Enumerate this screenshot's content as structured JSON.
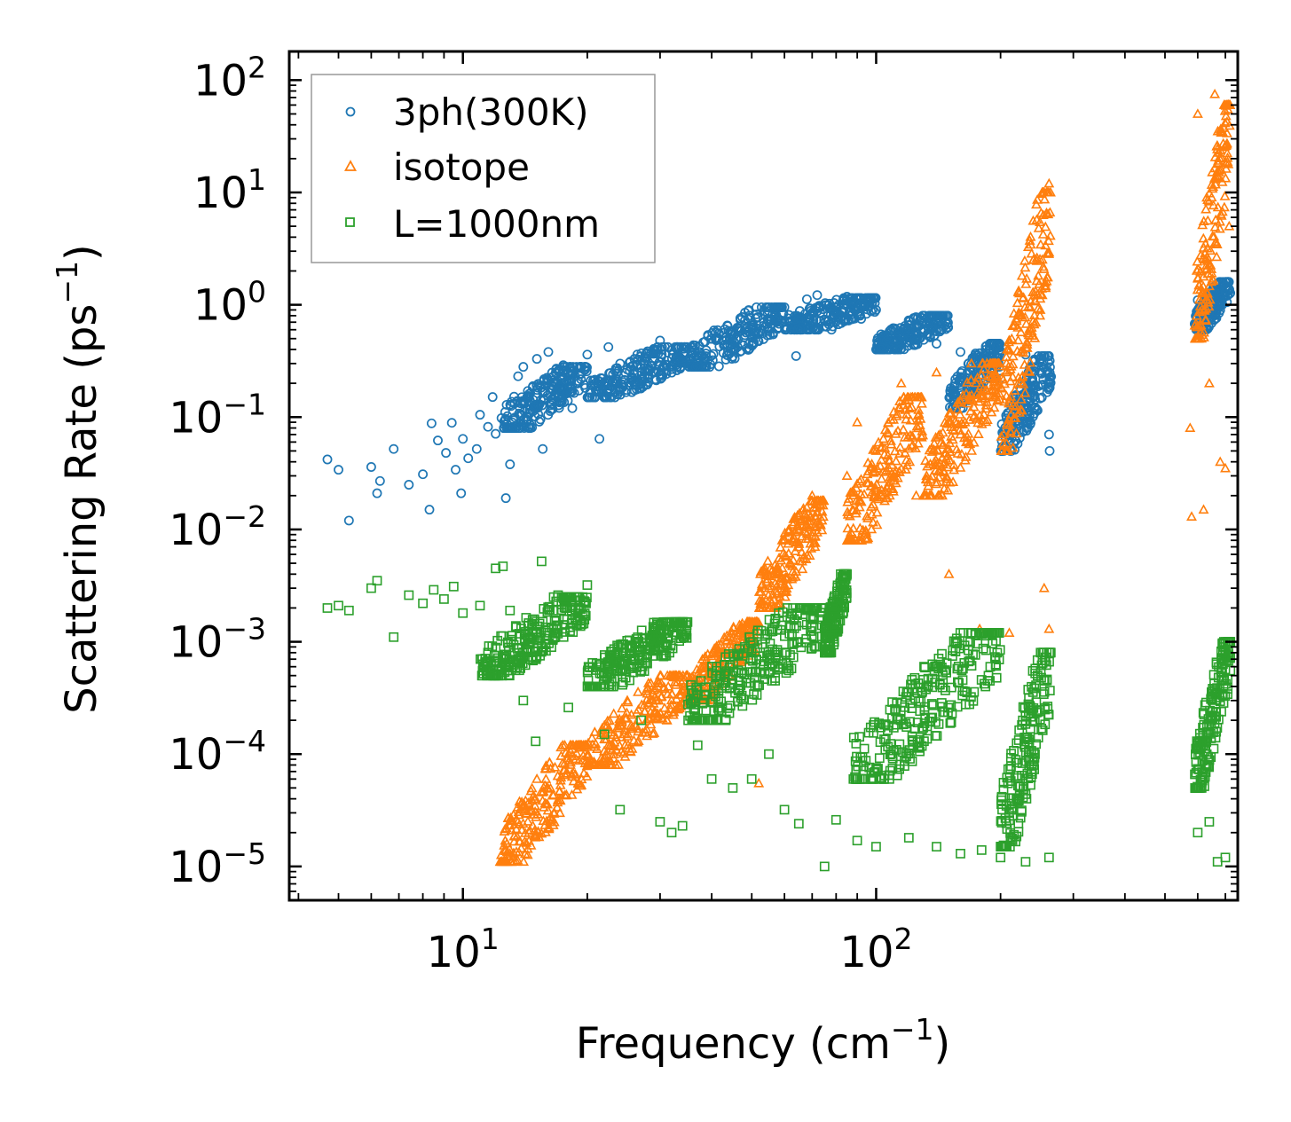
{
  "chart_data": {
    "type": "scatter",
    "xscale": "log",
    "yscale": "log",
    "xlim": [
      3.8,
      750
    ],
    "ylim": [
      5e-06,
      180
    ],
    "grid": false,
    "legend_position": "top-left",
    "xlabel": "Frequency (cm",
    "xlabel_unit_exp": "−1",
    "xlabel_close": ")",
    "ylabel": "Scattering Rate (ps",
    "ylabel_unit_exp": "−1",
    "ylabel_close": ")",
    "x_ticks": [
      {
        "base": "10",
        "exp": "1"
      },
      {
        "base": "10",
        "exp": "2"
      }
    ],
    "y_ticks": [
      {
        "base": "10",
        "exp": "2"
      },
      {
        "base": "10",
        "exp": "1"
      },
      {
        "base": "10",
        "exp": "0"
      },
      {
        "base": "10",
        "exp": "−1"
      },
      {
        "base": "10",
        "exp": "−2"
      },
      {
        "base": "10",
        "exp": "−3"
      },
      {
        "base": "10",
        "exp": "−4"
      },
      {
        "base": "10",
        "exp": "−5"
      }
    ],
    "series": [
      {
        "name": "3ph(300K)",
        "marker": "circle",
        "color": "#1f77b4",
        "points": [
          [
            4.7,
            0.042
          ],
          [
            5.0,
            0.034
          ],
          [
            5.3,
            0.012
          ],
          [
            6.0,
            0.036
          ],
          [
            6.2,
            0.021
          ],
          [
            6.3,
            0.027
          ],
          [
            6.8,
            0.052
          ],
          [
            7.4,
            0.025
          ],
          [
            8.0,
            0.031
          ],
          [
            8.3,
            0.015
          ],
          [
            8.4,
            0.088
          ],
          [
            8.7,
            0.062
          ],
          [
            9.1,
            0.048
          ],
          [
            9.4,
            0.089
          ],
          [
            9.6,
            0.034
          ],
          [
            9.9,
            0.021
          ],
          [
            10.0,
            0.064
          ],
          [
            10.3,
            0.043
          ],
          [
            10.8,
            0.052
          ],
          [
            11.0,
            0.105
          ],
          [
            11.5,
            0.082
          ],
          [
            11.8,
            0.151
          ],
          [
            12.0,
            0.071
          ],
          [
            12.4,
            0.098
          ],
          [
            12.7,
            0.019
          ],
          [
            13.0,
            0.038
          ],
          [
            13.3,
            0.152
          ],
          [
            13.6,
            0.231
          ],
          [
            14.0,
            0.28
          ],
          [
            14.5,
            0.11
          ],
          [
            15.1,
            0.33
          ],
          [
            15.6,
            0.052
          ],
          [
            16.1,
            0.38
          ],
          [
            16.8,
            0.165
          ],
          [
            17.5,
            0.29
          ],
          [
            18.4,
            0.12
          ],
          [
            19.0,
            0.21
          ],
          [
            20.0,
            0.36
          ],
          [
            21.4,
            0.064
          ],
          [
            22.5,
            0.42
          ],
          [
            24.0,
            0.17
          ],
          [
            26.0,
            0.33
          ],
          [
            28.0,
            0.26
          ],
          [
            30.0,
            0.48
          ],
          [
            33.0,
            0.31
          ],
          [
            36.0,
            0.42
          ],
          [
            40.0,
            0.5
          ],
          [
            45.0,
            0.58
          ],
          [
            50.0,
            0.66
          ],
          [
            55.0,
            0.88
          ],
          [
            60.0,
            0.95
          ],
          [
            64.0,
            0.35
          ],
          [
            68.0,
            1.12
          ],
          [
            72.0,
            1.22
          ],
          [
            78.0,
            0.6
          ],
          [
            85.0,
            1.18
          ],
          [
            92.0,
            0.75
          ],
          [
            100.0,
            0.9
          ],
          [
            110.0,
            0.62
          ],
          [
            125.0,
            0.55
          ],
          [
            140.0,
            0.45
          ],
          [
            160.0,
            0.38
          ],
          [
            175.0,
            0.25
          ],
          [
            185.0,
            0.43
          ],
          [
            200.0,
            0.22
          ],
          [
            230.0,
            0.36
          ],
          [
            262.0,
            0.07
          ],
          [
            263.0,
            0.05
          ],
          [
            600.0,
            1.1
          ],
          [
            640.0,
            0.85
          ],
          [
            700.0,
            1.45
          ]
        ],
        "bands": [
          {
            "x_from": 12.5,
            "x_to": 20,
            "y_from": 0.08,
            "y_to": 0.28
          },
          {
            "x_from": 20,
            "x_to": 35,
            "y_from": 0.15,
            "y_to": 0.42
          },
          {
            "x_from": 35,
            "x_to": 60,
            "y_from": 0.28,
            "y_to": 0.95
          },
          {
            "x_from": 60,
            "x_to": 100,
            "y_from": 0.6,
            "y_to": 1.15
          },
          {
            "x_from": 100,
            "x_to": 150,
            "y_from": 0.4,
            "y_to": 0.8
          },
          {
            "x_from": 150,
            "x_to": 200,
            "y_from": 0.12,
            "y_to": 0.45
          },
          {
            "x_from": 200,
            "x_to": 265,
            "y_from": 0.05,
            "y_to": 0.35
          },
          {
            "x_from": 590,
            "x_to": 720,
            "y_from": 0.6,
            "y_to": 1.6
          }
        ]
      },
      {
        "name": "isotope",
        "marker": "triangle",
        "color": "#ff7f0e",
        "points": [
          [
            12.3,
            1.1e-05
          ],
          [
            13.0,
            1.3e-05
          ],
          [
            15.0,
            4e-05
          ],
          [
            18.0,
            0.0001
          ],
          [
            22.0,
            0.00018
          ],
          [
            25.0,
            0.0003
          ],
          [
            30.0,
            0.0005
          ],
          [
            38.0,
            0.0007
          ],
          [
            45.0,
            0.0011
          ],
          [
            52.0,
            5.5e-05
          ],
          [
            55.0,
            0.003
          ],
          [
            60.0,
            0.008
          ],
          [
            65.0,
            0.013
          ],
          [
            70.0,
            0.02
          ],
          [
            74.0,
            0.012
          ],
          [
            85.0,
            0.03
          ],
          [
            90.0,
            0.09
          ],
          [
            100.0,
            0.05
          ],
          [
            115.0,
            0.2
          ],
          [
            125.0,
            0.02
          ],
          [
            140.0,
            0.25
          ],
          [
            150.0,
            0.004
          ],
          [
            170.0,
            0.3
          ],
          [
            178.0,
            0.0013
          ],
          [
            195.0,
            0.15
          ],
          [
            210.0,
            0.0012
          ],
          [
            225.0,
            0.8
          ],
          [
            240.0,
            2.5
          ],
          [
            255.0,
            0.003
          ],
          [
            262.0,
            12.0
          ],
          [
            262.0,
            0.0013
          ],
          [
            575.0,
            0.08
          ],
          [
            580.0,
            0.013
          ],
          [
            600.0,
            50.0
          ],
          [
            620.0,
            0.015
          ],
          [
            640.0,
            0.2
          ],
          [
            660.0,
            75.0
          ],
          [
            680.0,
            0.04
          ],
          [
            700.0,
            0.035
          ],
          [
            715.0,
            5.0
          ]
        ],
        "bands": [
          {
            "x_from": 12.3,
            "x_to": 20,
            "y_from": 1.1e-05,
            "y_to": 0.00012
          },
          {
            "x_from": 20,
            "x_to": 35,
            "y_from": 8e-05,
            "y_to": 0.0005
          },
          {
            "x_from": 35,
            "x_to": 52,
            "y_from": 0.0003,
            "y_to": 0.0015
          },
          {
            "x_from": 52,
            "x_to": 75,
            "y_from": 0.002,
            "y_to": 0.018
          },
          {
            "x_from": 85,
            "x_to": 130,
            "y_from": 0.008,
            "y_to": 0.15
          },
          {
            "x_from": 130,
            "x_to": 200,
            "y_from": 0.02,
            "y_to": 0.3
          },
          {
            "x_from": 200,
            "x_to": 265,
            "y_from": 0.05,
            "y_to": 10.0
          },
          {
            "x_from": 590,
            "x_to": 720,
            "y_from": 0.5,
            "y_to": 60.0
          }
        ]
      },
      {
        "name": "L=1000nm",
        "marker": "square",
        "color": "#2ca02c",
        "points": [
          [
            4.7,
            0.002
          ],
          [
            5.0,
            0.0021
          ],
          [
            5.3,
            0.0019
          ],
          [
            6.0,
            0.003
          ],
          [
            6.2,
            0.0035
          ],
          [
            6.8,
            0.0011
          ],
          [
            7.4,
            0.0026
          ],
          [
            8.0,
            0.0022
          ],
          [
            8.5,
            0.0029
          ],
          [
            9.0,
            0.0024
          ],
          [
            9.5,
            0.0031
          ],
          [
            10.0,
            0.0018
          ],
          [
            11.0,
            0.0021
          ],
          [
            11.5,
            0.0008
          ],
          [
            12.0,
            0.0045
          ],
          [
            12.5,
            0.0047
          ],
          [
            13.0,
            0.0019
          ],
          [
            14.0,
            0.0003
          ],
          [
            15.0,
            0.00013
          ],
          [
            15.5,
            0.0052
          ],
          [
            17.0,
            0.0026
          ],
          [
            18.0,
            0.00026
          ],
          [
            20.0,
            0.0032
          ],
          [
            22.0,
            0.00015
          ],
          [
            24.0,
            3.2e-05
          ],
          [
            27.0,
            0.0002
          ],
          [
            30.0,
            2.5e-05
          ],
          [
            32.0,
            2e-05
          ],
          [
            34.0,
            2.3e-05
          ],
          [
            37.0,
            0.00012
          ],
          [
            40.0,
            6e-05
          ],
          [
            45.0,
            5e-05
          ],
          [
            50.0,
            6e-05
          ],
          [
            55.0,
            0.0001
          ],
          [
            60.0,
            3.2e-05
          ],
          [
            65.0,
            2.4e-05
          ],
          [
            75.0,
            1e-05
          ],
          [
            80.0,
            2.6e-05
          ],
          [
            90.0,
            1.7e-05
          ],
          [
            100.0,
            1.5e-05
          ],
          [
            120.0,
            1.8e-05
          ],
          [
            140.0,
            1.5e-05
          ],
          [
            160.0,
            1.3e-05
          ],
          [
            180.0,
            1.4e-05
          ],
          [
            200.0,
            1.2e-05
          ],
          [
            230.0,
            1.1e-05
          ],
          [
            262.0,
            1.2e-05
          ],
          [
            600.0,
            2e-05
          ],
          [
            640.0,
            2.5e-05
          ],
          [
            670.0,
            1.1e-05
          ],
          [
            700.0,
            1.2e-05
          ]
        ],
        "bands": [
          {
            "x_from": 11,
            "x_to": 20,
            "y_from": 0.0005,
            "y_to": 0.0025
          },
          {
            "x_from": 20,
            "x_to": 35,
            "y_from": 0.0004,
            "y_to": 0.0015
          },
          {
            "x_from": 35,
            "x_to": 75,
            "y_from": 0.0002,
            "y_to": 0.002
          },
          {
            "x_from": 75,
            "x_to": 85,
            "y_from": 0.0008,
            "y_to": 0.004
          },
          {
            "x_from": 88,
            "x_to": 200,
            "y_from": 6e-05,
            "y_to": 0.0012
          },
          {
            "x_from": 200,
            "x_to": 265,
            "y_from": 1.5e-05,
            "y_to": 0.0008
          },
          {
            "x_from": 590,
            "x_to": 720,
            "y_from": 5e-05,
            "y_to": 0.001
          }
        ]
      }
    ]
  }
}
